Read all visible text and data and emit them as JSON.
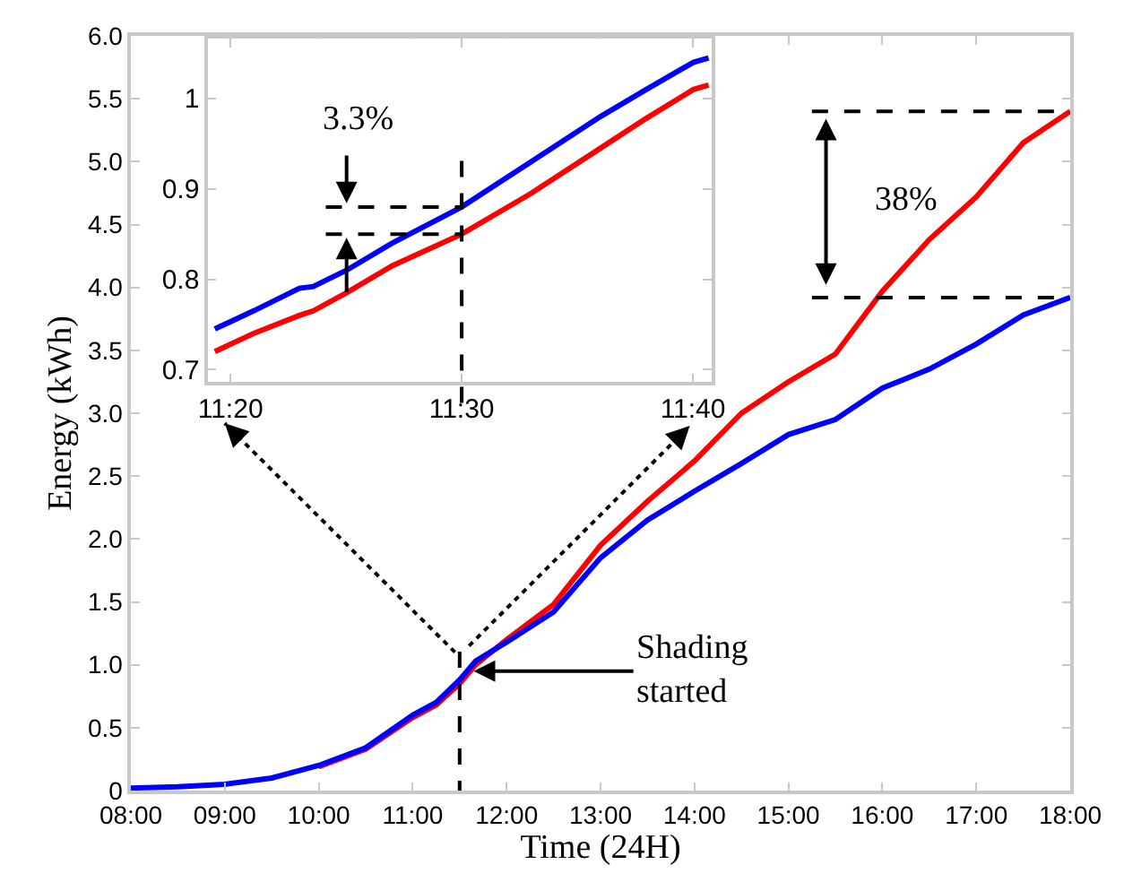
{
  "chart_data": [
    {
      "type": "line",
      "xlabel": "Time (24H)",
      "ylabel": "Energy (kWh)",
      "x": [
        8,
        8.5,
        9,
        9.5,
        10,
        10.5,
        11,
        11.25,
        11.5,
        11.67,
        12,
        12.5,
        13,
        13.5,
        14,
        14.5,
        15,
        15.5,
        16,
        16.5,
        17,
        17.5,
        18
      ],
      "series": [
        {
          "color": "#ff0000",
          "values": [
            null,
            null,
            null,
            null,
            0.19,
            0.33,
            0.58,
            0.68,
            0.85,
            1.0,
            1.2,
            1.48,
            1.95,
            2.3,
            2.62,
            3.0,
            3.25,
            3.47,
            3.97,
            4.38,
            4.72,
            5.15,
            5.4
          ]
        },
        {
          "color": "#0000ff",
          "values": [
            0.02,
            0.03,
            0.05,
            0.1,
            0.2,
            0.34,
            0.6,
            0.7,
            0.88,
            1.03,
            1.18,
            1.42,
            1.85,
            2.15,
            2.38,
            2.6,
            2.83,
            2.95,
            3.2,
            3.35,
            3.55,
            3.78,
            3.92
          ]
        }
      ],
      "xlim": [
        8,
        18
      ],
      "xticks": [
        {
          "value": 8,
          "label": "08:00"
        },
        {
          "value": 9,
          "label": "09:00"
        },
        {
          "value": 10,
          "label": "10:00"
        },
        {
          "value": 11,
          "label": "11:00"
        },
        {
          "value": 12,
          "label": "12:00"
        },
        {
          "value": 13,
          "label": "13:00"
        },
        {
          "value": 14,
          "label": "14:00"
        },
        {
          "value": 15,
          "label": "15:00"
        },
        {
          "value": 16,
          "label": "16:00"
        },
        {
          "value": 17,
          "label": "17:00"
        },
        {
          "value": 18,
          "label": "18:00"
        }
      ],
      "ylim": [
        0,
        6
      ],
      "yticks": [
        0,
        0.5,
        {
          "value": 1,
          "label": "1.0"
        },
        1.5,
        {
          "value": 2,
          "label": "2.0"
        },
        2.5,
        {
          "value": 3,
          "label": "3.0"
        },
        3.5,
        {
          "value": 4,
          "label": "4.0"
        },
        4.5,
        {
          "value": 5,
          "label": "5.0"
        },
        5.5,
        {
          "value": 6,
          "label": "6.0"
        }
      ],
      "ref_lines": [
        {
          "axis": "x",
          "value": 11.5,
          "color": "#000000",
          "line_style": "dashed"
        },
        {
          "axis": "y",
          "value": 5.4,
          "color": "#000000",
          "line_style": "dashed"
        },
        {
          "axis": "y",
          "value": 3.92,
          "color": "#000000",
          "line_style": "dashed"
        }
      ],
      "annotations": [
        {
          "text": "Shading\nstarted",
          "x": 11.65,
          "y": 0.95
        },
        "38%"
      ]
    },
    {
      "type": "line",
      "series": [
        {
          "color": "#ff0000",
          "x": [
            11.322,
            11.35,
            11.383,
            11.393,
            11.417,
            11.45,
            11.5,
            11.55,
            11.6,
            11.633,
            11.667,
            11.678
          ],
          "values": [
            0.72,
            0.74,
            0.76,
            0.765,
            0.785,
            0.815,
            0.85,
            0.895,
            0.945,
            0.978,
            1.01,
            1.015
          ]
        },
        {
          "color": "#0000ff",
          "x": [
            11.322,
            11.35,
            11.383,
            11.393,
            11.417,
            11.45,
            11.5,
            11.55,
            11.6,
            11.633,
            11.667,
            11.678
          ],
          "values": [
            0.745,
            0.765,
            0.79,
            0.792,
            0.81,
            0.84,
            0.88,
            0.93,
            0.98,
            1.01,
            1.04,
            1.045
          ]
        }
      ],
      "xlim": [
        11.317,
        11.68
      ],
      "xticks": [
        {
          "value": 11.3333,
          "label": "11:20"
        },
        {
          "value": 11.5,
          "label": "11:30"
        },
        {
          "value": 11.6667,
          "label": "11:40"
        }
      ],
      "ylim": [
        0.686,
        1.066
      ],
      "yticks": [
        0.7,
        0.8,
        0.9,
        1
      ],
      "ref_lines": [
        {
          "axis": "x",
          "value": 11.5,
          "color": "#000000",
          "line_style": "dashed"
        },
        {
          "axis": "y",
          "value": 0.88,
          "color": "#000000",
          "line_style": "dashed"
        },
        {
          "axis": "y",
          "value": 0.85,
          "color": "#000000",
          "line_style": "dashed"
        }
      ],
      "annotations": [
        {
          "text": "3.3%",
          "x": 11.417,
          "y": 0.88
        }
      ]
    }
  ]
}
